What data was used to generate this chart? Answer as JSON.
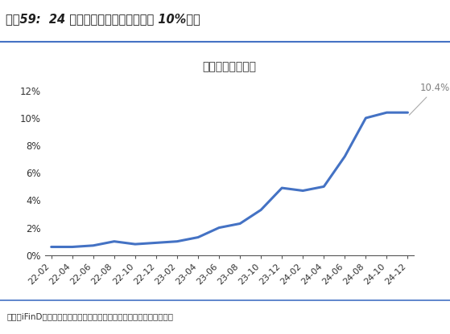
{
  "title_main": "图表59:  24 年电动装载机渗透率提升至 10%以上",
  "chart_title": "电动装载机渗透率",
  "source_text": "来源：iFinD，中国工程机械工业协会，慧聪工程机械，国金证券研究所",
  "line_color": "#4472C4",
  "annotation_text": "10.4%",
  "annotation_color": "#808080",
  "x_labels": [
    "22-02",
    "22-04",
    "22-06",
    "22-08",
    "22-10",
    "22-12",
    "23-02",
    "23-04",
    "23-06",
    "23-08",
    "23-10",
    "23-12",
    "24-02",
    "24-04",
    "24-06",
    "24-08",
    "24-10",
    "24-12"
  ],
  "y_values": [
    0.006,
    0.006,
    0.007,
    0.01,
    0.008,
    0.009,
    0.01,
    0.013,
    0.02,
    0.023,
    0.033,
    0.049,
    0.047,
    0.05,
    0.072,
    0.1,
    0.104,
    0.104
  ],
  "ylim": [
    0,
    0.13
  ],
  "yticks": [
    0,
    0.02,
    0.04,
    0.06,
    0.08,
    0.1,
    0.12
  ],
  "ytick_labels": [
    "0%",
    "2%",
    "4%",
    "6%",
    "8%",
    "10%",
    "12%"
  ],
  "bg_color": "#ffffff",
  "fig_bg_color": "#ffffff",
  "header_bg_color": "#dce6f1",
  "line_width": 2.2,
  "title_divider_color": "#4472C4",
  "bottom_divider_color": "#4472C4",
  "header_text_color": "#1f1f1f",
  "source_text_color": "#333333",
  "axis_label_fontsize": 8,
  "chart_title_fontsize": 10,
  "header_fontsize": 10.5
}
